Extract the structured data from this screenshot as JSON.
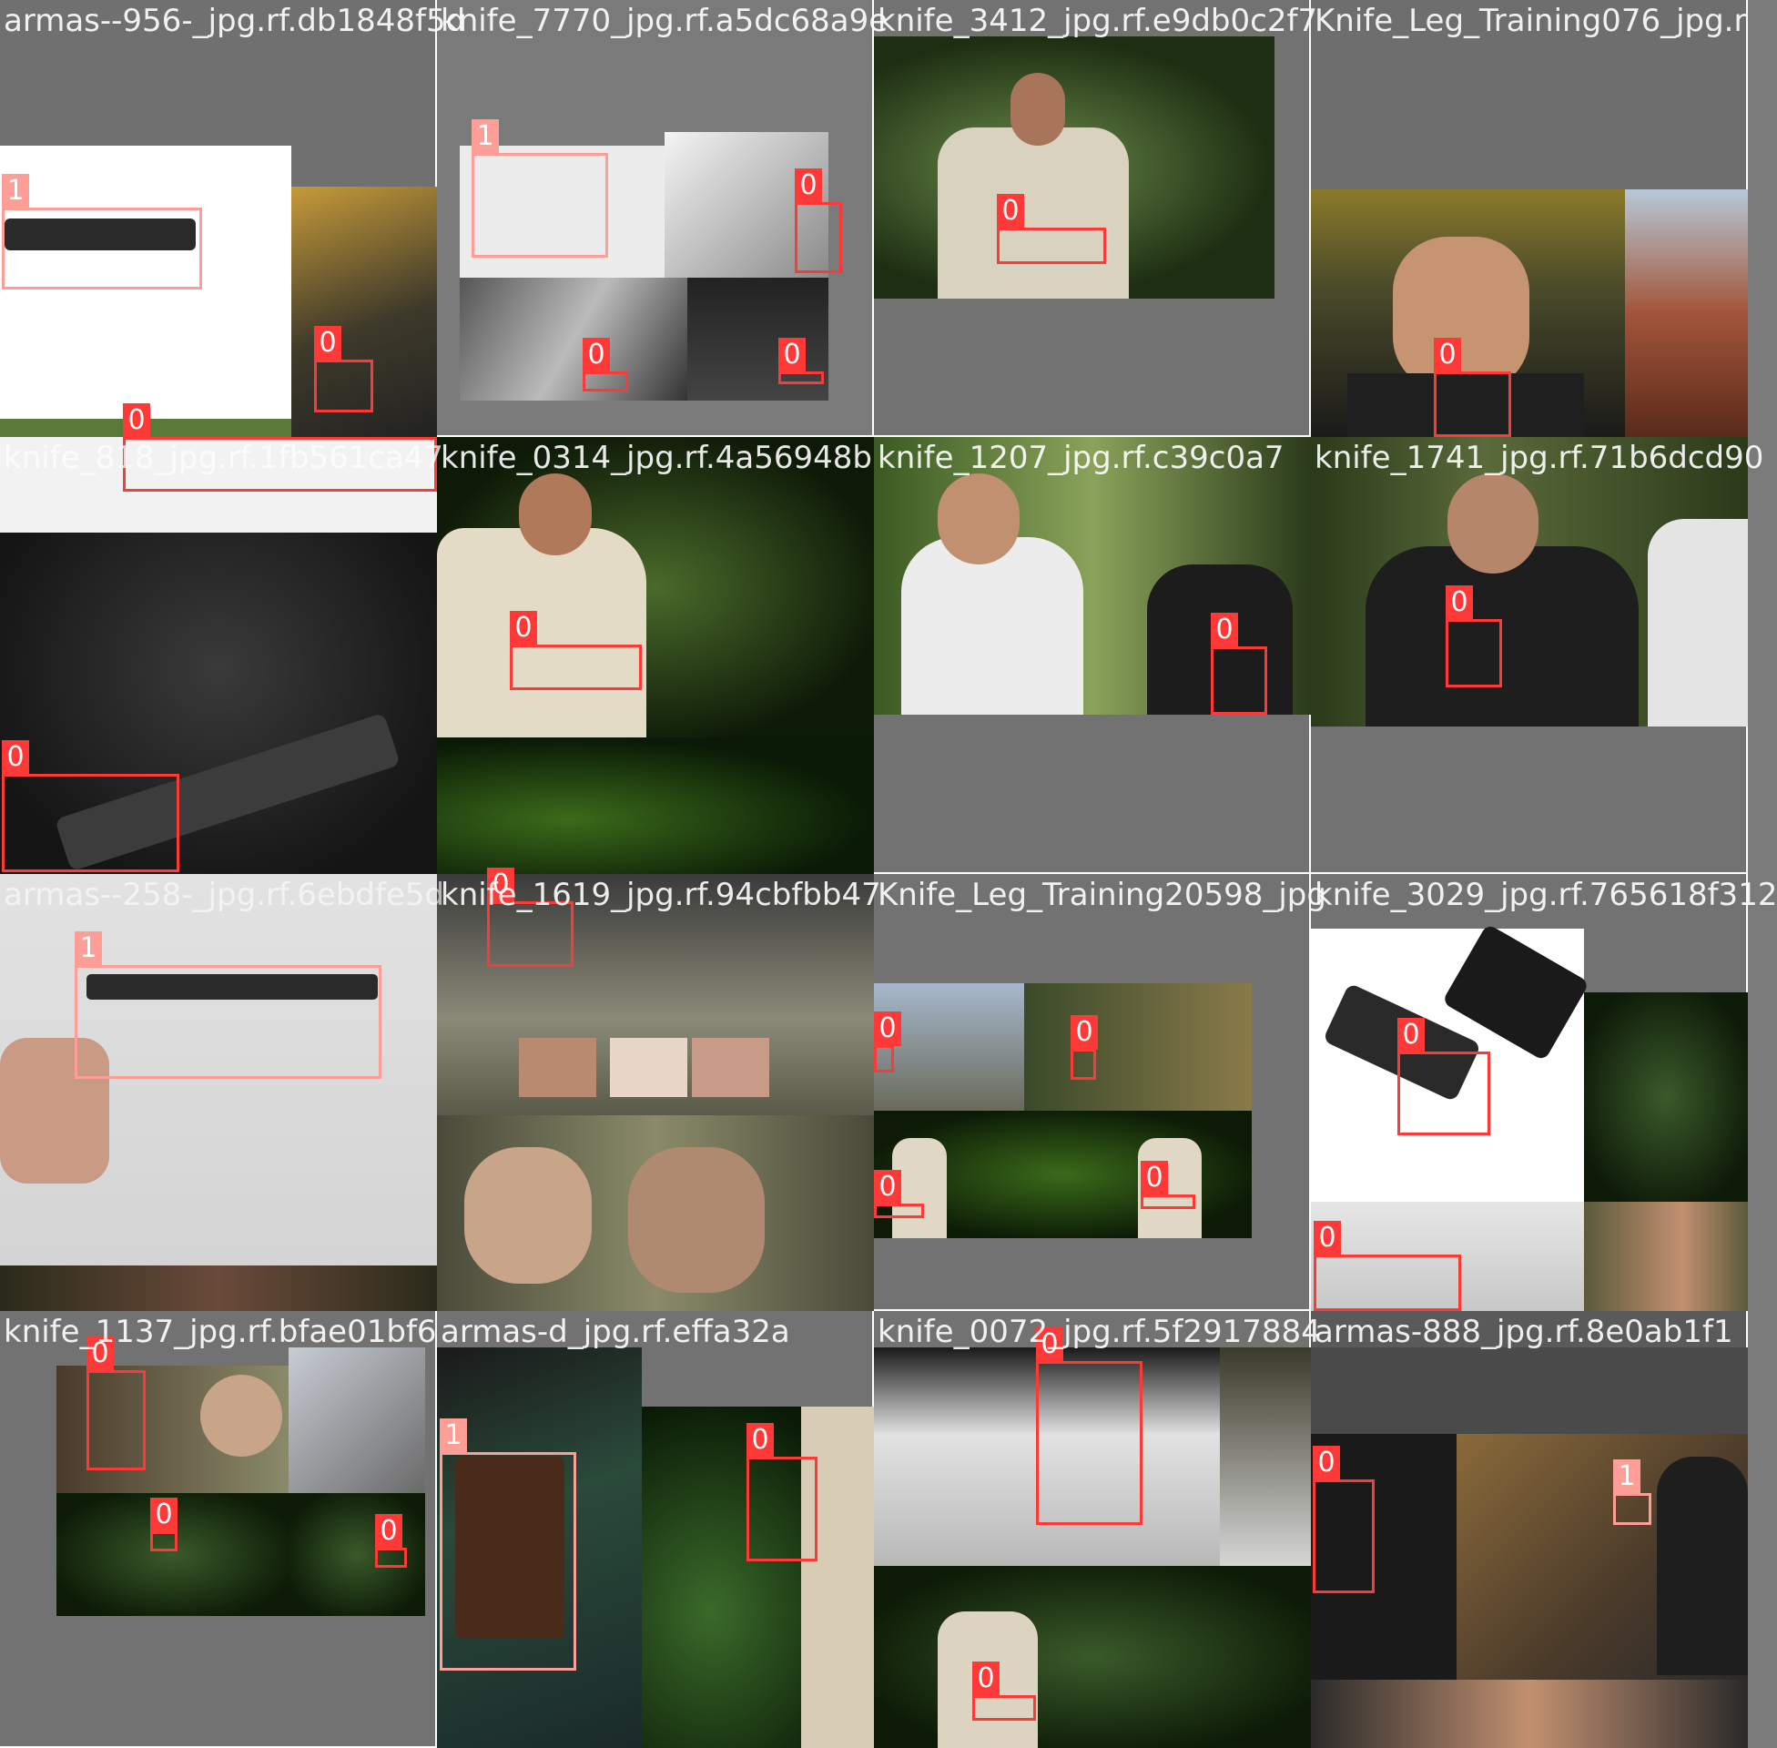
{
  "colors": {
    "class_0": "#ff3838",
    "class_1": "#ff9d97",
    "padding_gray": "#727272"
  },
  "tiles": [
    {
      "name": "armas--956-_jpg.rf.db1848f5d",
      "boxes": [
        {
          "label": "1"
        },
        {
          "label": "0"
        },
        {
          "label": "0"
        }
      ]
    },
    {
      "name": "knife_7770_jpg.rf.a5dc68a9e",
      "boxes": [
        {
          "label": "1"
        },
        {
          "label": "0"
        },
        {
          "label": "0"
        },
        {
          "label": "0"
        }
      ]
    },
    {
      "name": "knife_3412_jpg.rf.e9db0c2f7",
      "boxes": [
        {
          "label": "0"
        }
      ]
    },
    {
      "name": "Knife_Leg_Training076_jpg.r",
      "boxes": [
        {
          "label": "0"
        }
      ]
    },
    {
      "name": "knife_818_jpg.rf.1fb561ca47",
      "boxes": [
        {
          "label": "0"
        }
      ]
    },
    {
      "name": "knife_0314_jpg.rf.4a56948b",
      "boxes": [
        {
          "label": "0"
        }
      ]
    },
    {
      "name": "knife_1207_jpg.rf.c39c0a7",
      "boxes": [
        {
          "label": "0"
        }
      ]
    },
    {
      "name": "knife_1741_jpg.rf.71b6dcd90",
      "boxes": [
        {
          "label": "0"
        }
      ]
    },
    {
      "name": "armas--258-_jpg.rf.6ebdfe5d",
      "boxes": [
        {
          "label": "1"
        }
      ]
    },
    {
      "name": "knife_1619_jpg.rf.94cbfbb47",
      "boxes": [
        {
          "label": "0"
        }
      ]
    },
    {
      "name": "Knife_Leg_Training20598_jpg",
      "boxes": [
        {
          "label": "0"
        },
        {
          "label": "0"
        },
        {
          "label": "0"
        },
        {
          "label": "0"
        }
      ]
    },
    {
      "name": "knife_3029_jpg.rf.765618f312",
      "boxes": [
        {
          "label": "0"
        },
        {
          "label": "0"
        }
      ]
    },
    {
      "name": "knife_1137_jpg.rf.bfae01bf6",
      "boxes": [
        {
          "label": "0"
        },
        {
          "label": "0"
        },
        {
          "label": "0"
        }
      ]
    },
    {
      "name": "armas-d_jpg.rf.effa32a",
      "boxes": [
        {
          "label": "1"
        },
        {
          "label": "0"
        }
      ]
    },
    {
      "name": "knife_0072_jpg.rf.5f2917884",
      "boxes": [
        {
          "label": "0"
        },
        {
          "label": "0"
        }
      ]
    },
    {
      "name": "armas-888_jpg.rf.8e0ab1f1",
      "boxes": [
        {
          "label": "0"
        },
        {
          "label": "1"
        }
      ]
    }
  ]
}
